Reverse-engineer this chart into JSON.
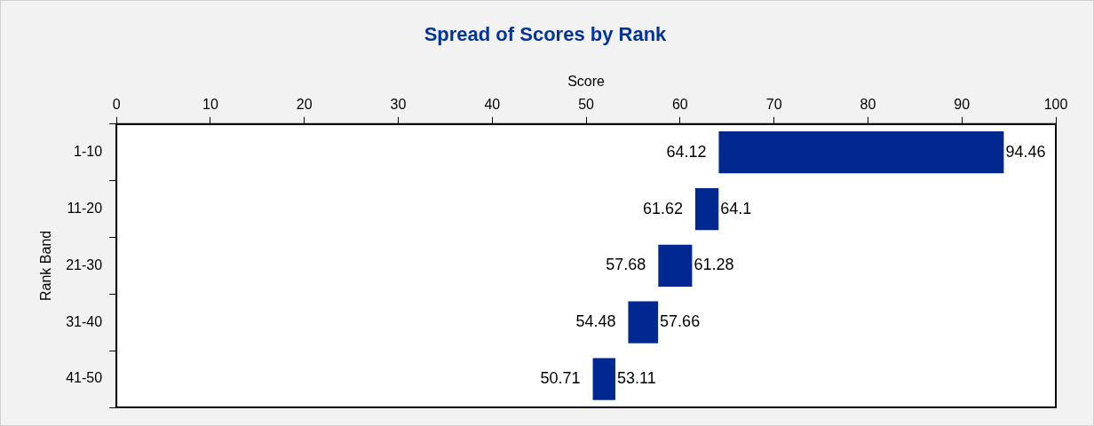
{
  "chart_data": {
    "type": "bar",
    "orientation": "horizontal",
    "title": "Spread of Scores by Rank",
    "xlabel": "Score",
    "ylabel": "Rank Band",
    "categories": [
      "1-10",
      "11-20",
      "21-30",
      "31-40",
      "41-50"
    ],
    "base": [
      64.12,
      61.62,
      57.68,
      54.48,
      50.71
    ],
    "values": [
      30.34,
      2.48,
      3.6,
      3.18,
      2.4
    ],
    "color": "#00288f",
    "xlim": [
      0,
      100
    ],
    "xticks": [
      0,
      10,
      20,
      30,
      40,
      50,
      60,
      70,
      80,
      90,
      100
    ],
    "grid": false,
    "legend": false,
    "annotations": [
      {
        "text": "64.12",
        "x": 64.12,
        "y": "1-10"
      },
      {
        "text": "94.46",
        "x": 94.46,
        "y": "1-10"
      },
      {
        "text": "61.62",
        "x": 61.62,
        "y": "11-20"
      },
      {
        "text": "64.1",
        "x": 64.1,
        "y": "11-20"
      },
      {
        "text": "57.68",
        "x": 57.68,
        "y": "21-30"
      },
      {
        "text": "61.28",
        "x": 61.28,
        "y": "21-30"
      },
      {
        "text": "54.48",
        "x": 54.48,
        "y": "31-40"
      },
      {
        "text": "57.66",
        "x": 57.66,
        "y": "31-40"
      },
      {
        "text": "50.71",
        "x": 50.71,
        "y": "41-50"
      },
      {
        "text": "53.11",
        "x": 53.11,
        "y": "41-50"
      }
    ]
  }
}
